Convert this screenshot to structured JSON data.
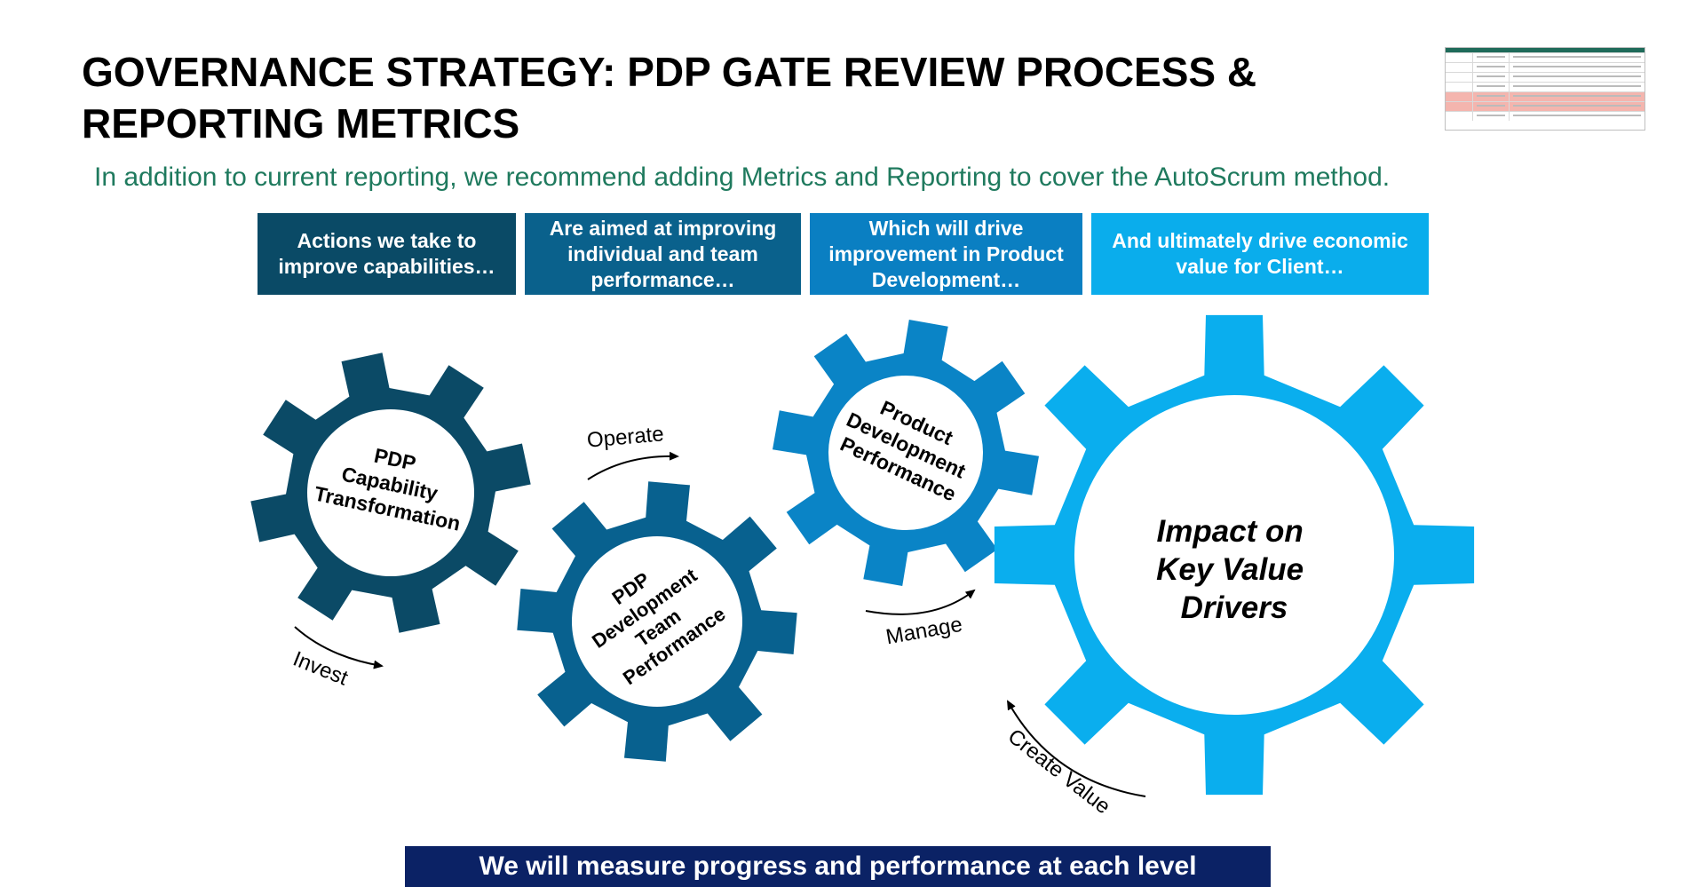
{
  "title": "GOVERNANCE STRATEGY: PDP GATE REVIEW PROCESS & REPORTING METRICS",
  "subtitle": "In addition to current reporting, we recommend adding Metrics and Reporting to cover the AutoScrum method.",
  "header_boxes": [
    {
      "text": "Actions we take to improve capabilities…"
    },
    {
      "text": "Are aimed at improving individual and team performance…"
    },
    {
      "text": "Which will drive improvement in Product Development…"
    },
    {
      "text": "And ultimately drive economic value for Client…"
    }
  ],
  "gears": [
    {
      "lines": [
        "PDP",
        "Capability",
        "Transformation"
      ]
    },
    {
      "lines": [
        "PDP",
        "Development",
        "Team",
        "Performance"
      ]
    },
    {
      "lines": [
        "Product",
        "Development",
        "Performance"
      ]
    },
    {
      "lines": [
        "Impact on",
        "Key Value",
        "Drivers"
      ]
    }
  ],
  "arrows": {
    "invest": "Invest",
    "operate": "Operate",
    "manage": "Manage",
    "create_value": "Create Value"
  },
  "footer": "We will measure progress and performance at each level",
  "colors": {
    "subtitle": "#1f7a5e",
    "box1": "#0a4a66",
    "box2": "#0a618c",
    "box3": "#0a7fc2",
    "box4": "#0aadec",
    "gear1": "#0b4a66",
    "gear2": "#08618f",
    "gear3": "#0a84c6",
    "gear4": "#0aaeee",
    "footer": "#0b2265"
  },
  "icons": {
    "thumbnail": "table-thumbnail-icon"
  }
}
